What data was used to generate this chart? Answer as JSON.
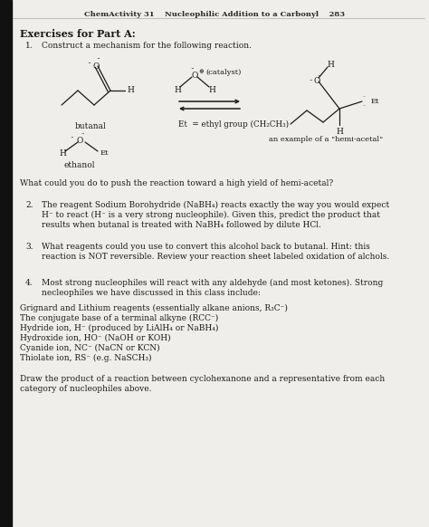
{
  "header": "ChemActivity 31    Nucleophilic Addition to a Carbonyl    283",
  "title": "Exercises for Part A:",
  "q1_label": "1.",
  "q1_text": "Construct a mechanism for the following reaction.",
  "q2_label": "2.",
  "q2_text_line1": "The reagent Sodium Borohydride (NaBH₄) reacts exactly the way you would expect",
  "q2_text_line2": "H⁻ to react (H⁻ is a very strong nucleophile). Given this, predict the product that",
  "q2_text_line3": "results when butanal is treated with NaBH₄ followed by dilute HCl.",
  "q3_label": "3.",
  "q3_text_line1": "What reagents could you use to convert this alcohol back to butanal. Hint: this",
  "q3_text_line2": "reaction is NOT reversible. Review your reaction sheet labeled oxidation of alchols.",
  "q4_label": "4.",
  "q4_text_line1": "Most strong nucleophiles will react with any aldehyde (and most ketones). Strong",
  "q4_text_line2": "necleophiles we have discussed in this class include:",
  "list_items": [
    "Grignard and Lithium reagents (essentially alkane anions, R₃C⁻)",
    "The conjugate base of a terminal alkyne (RCC⁻)",
    "Hydride ion, H⁻ (produced by LiAlH₄ or NaBH₄)",
    "Hydroxide ion, HO⁻ (NaOH or KOH)",
    "Cyanide ion, NC⁻ (NaCN or KCN)",
    "Thiolate ion, RS⁻ (e.g. NaSCH₃)"
  ],
  "draw_text_line1": "Draw the product of a reaction between cyclohexanone and a representative from each",
  "draw_text_line2": "category of nucleophiles above.",
  "what_text": "What could you do to push the reaction toward a high yield of hemi-acetal?",
  "bg_color": "#f0eeea",
  "text_color": "#1a1a1a",
  "header_color": "#2a2a2a",
  "left_bar_color": "#111111",
  "fig_width": 4.74,
  "fig_height": 5.82,
  "dpi": 100
}
